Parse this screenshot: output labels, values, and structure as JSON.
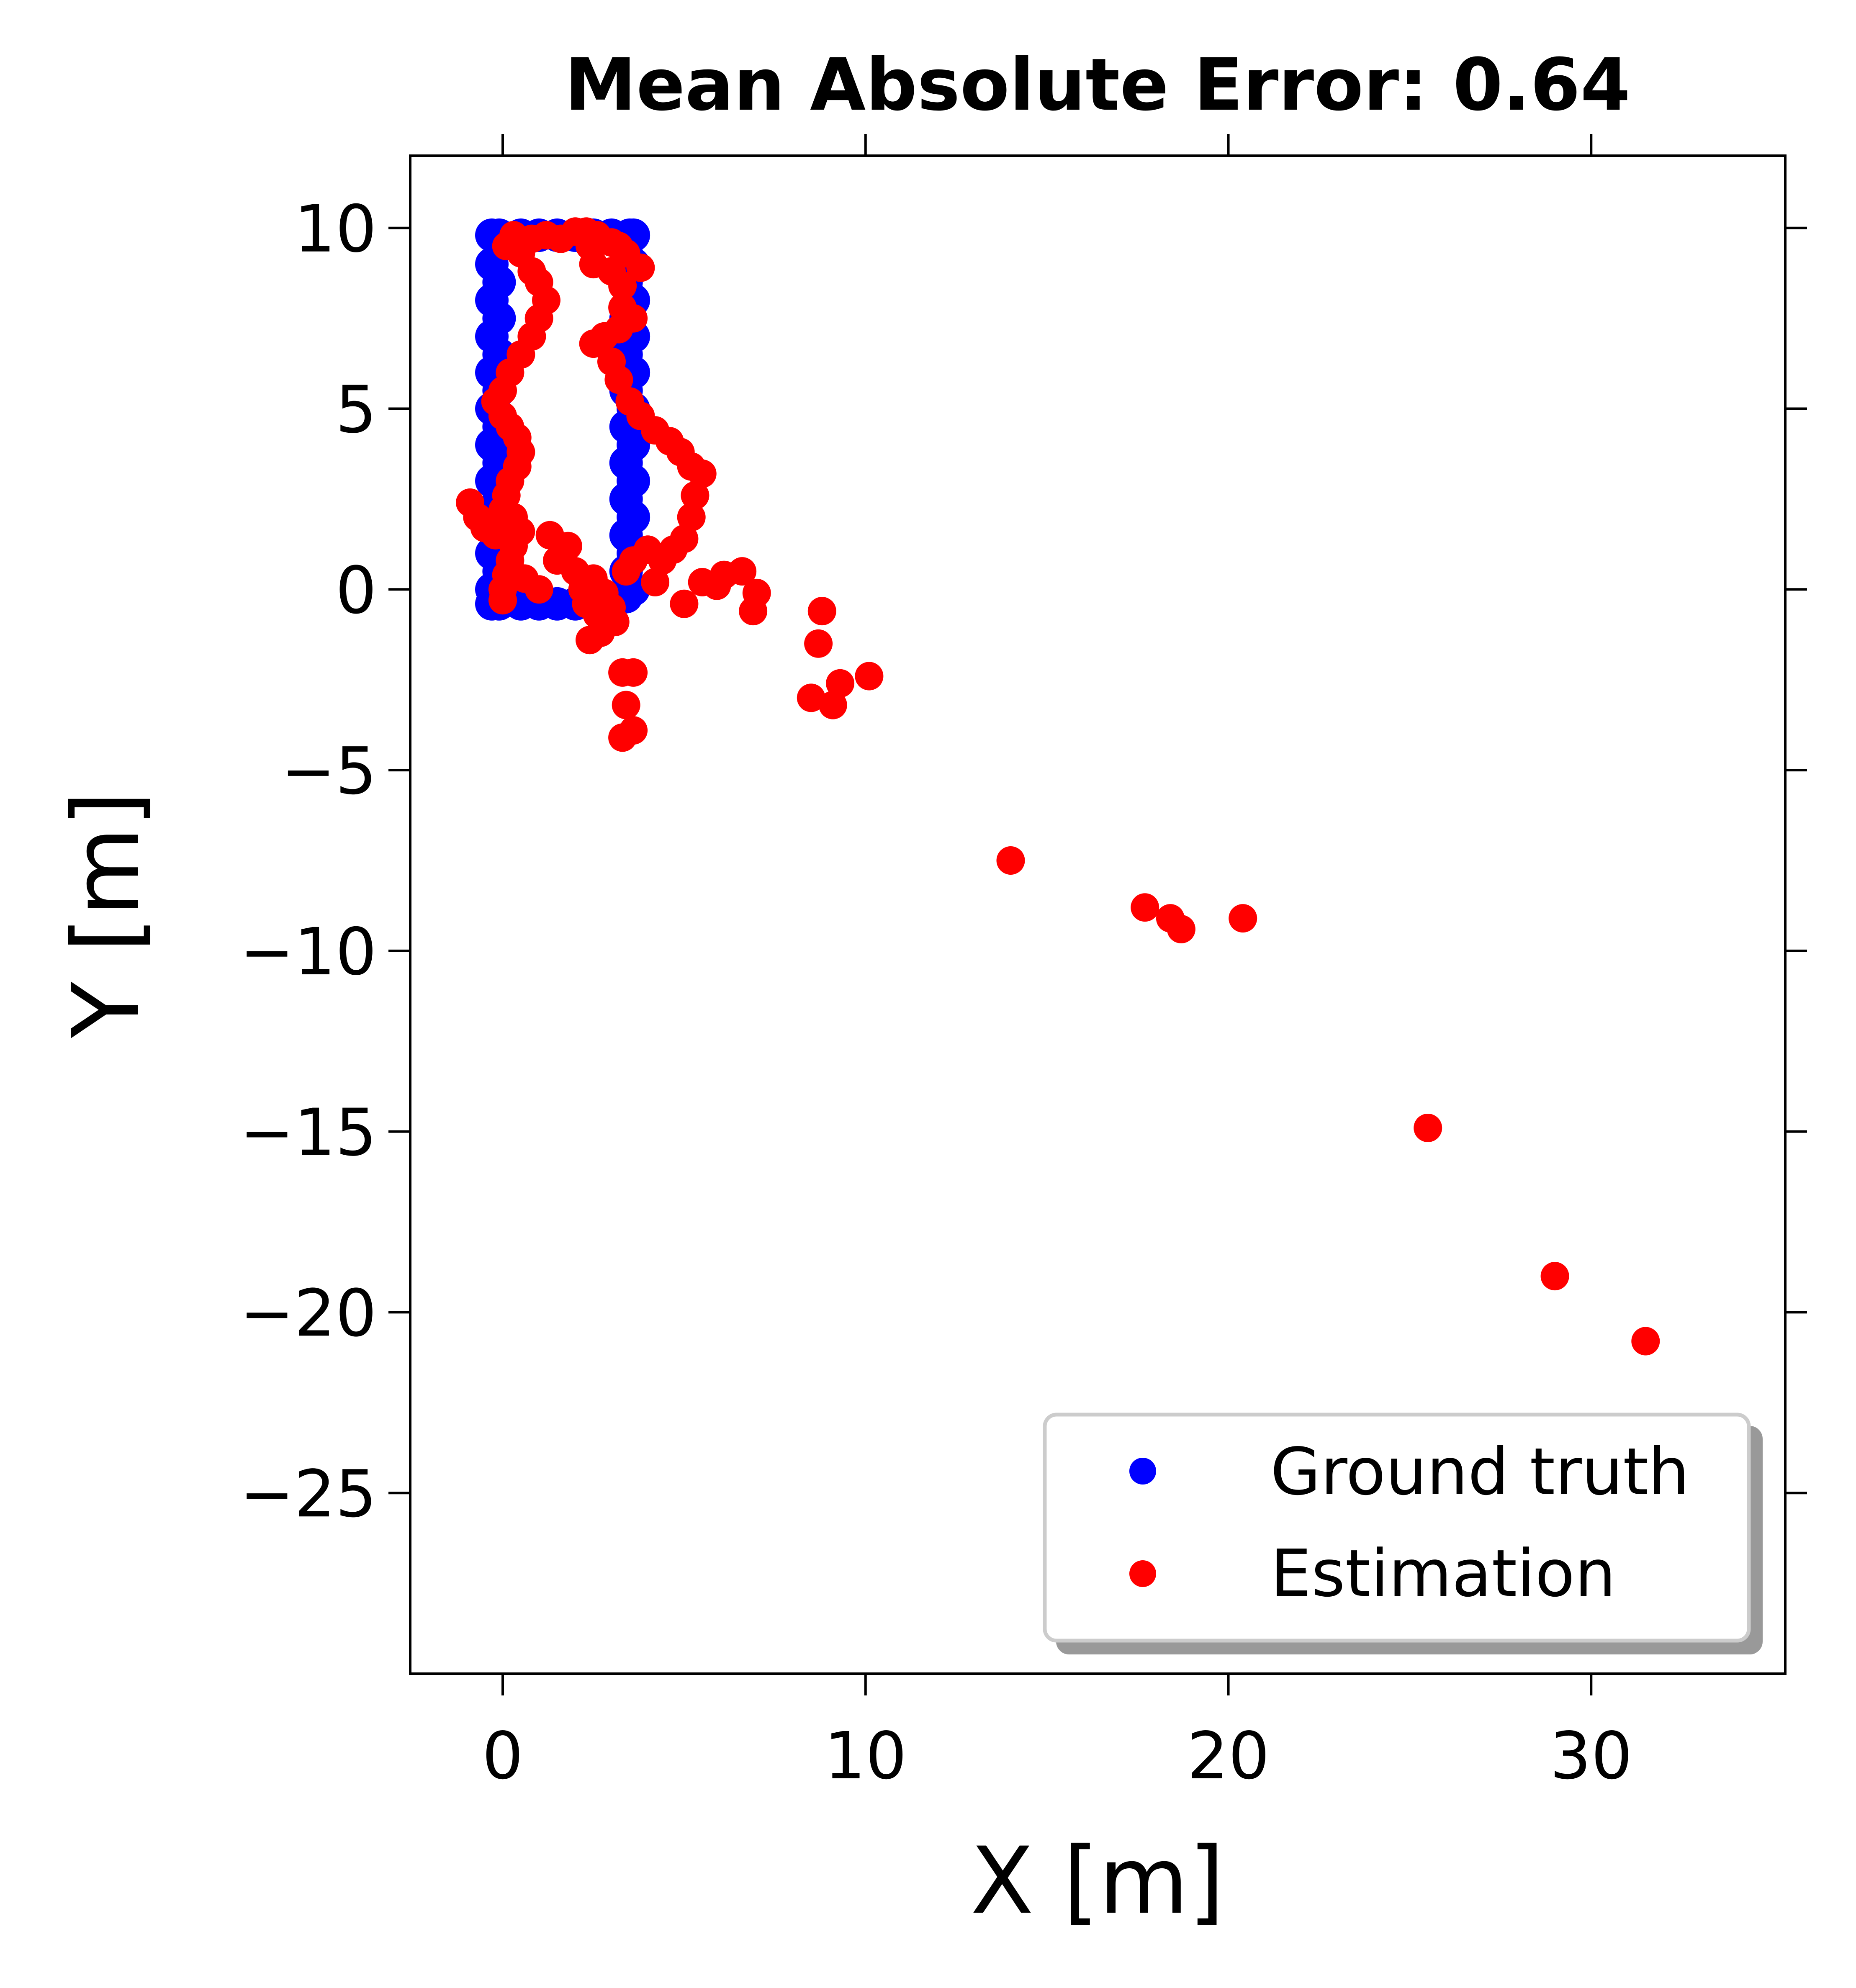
{
  "chart_data": {
    "type": "scatter",
    "title": "Mean Absolute Error: 0.64",
    "xlabel": "X [m]",
    "ylabel": "Y [m]",
    "xlim": [
      -2.55,
      35.35
    ],
    "ylim": [
      -30.0,
      12.0
    ],
    "xticks": [
      0,
      10,
      20,
      30
    ],
    "yticks": [
      10,
      5,
      0,
      -5,
      -10,
      -15,
      -20,
      -25
    ],
    "ytick_labels": [
      "10",
      "5",
      "0",
      "−5",
      "−10",
      "−15",
      "−20",
      "−25"
    ],
    "grid": false,
    "legend_position": "lower right",
    "series": [
      {
        "name": "Ground truth",
        "color": "#0000ff",
        "points": [
          [
            -0.3,
            9.8
          ],
          [
            -0.3,
            9.0
          ],
          [
            -0.3,
            8.0
          ],
          [
            -0.3,
            7.0
          ],
          [
            -0.3,
            6.0
          ],
          [
            -0.3,
            5.0
          ],
          [
            -0.3,
            4.0
          ],
          [
            -0.3,
            3.0
          ],
          [
            -0.3,
            2.0
          ],
          [
            -0.3,
            1.0
          ],
          [
            -0.3,
            0.0
          ],
          [
            -0.3,
            -0.4
          ],
          [
            -0.1,
            9.8
          ],
          [
            -0.1,
            8.5
          ],
          [
            -0.1,
            7.5
          ],
          [
            -0.1,
            6.5
          ],
          [
            -0.1,
            5.5
          ],
          [
            -0.1,
            4.5
          ],
          [
            -0.1,
            3.5
          ],
          [
            -0.1,
            2.5
          ],
          [
            -0.1,
            1.5
          ],
          [
            -0.1,
            0.5
          ],
          [
            -0.1,
            -0.4
          ],
          [
            0.5,
            9.8
          ],
          [
            1.0,
            9.8
          ],
          [
            1.5,
            9.8
          ],
          [
            2.0,
            9.8
          ],
          [
            2.5,
            9.8
          ],
          [
            3.0,
            9.8
          ],
          [
            3.5,
            9.8
          ],
          [
            0.5,
            -0.4
          ],
          [
            1.0,
            -0.4
          ],
          [
            1.5,
            -0.4
          ],
          [
            2.0,
            -0.4
          ],
          [
            2.5,
            -0.4
          ],
          [
            3.0,
            -0.4
          ],
          [
            3.4,
            9.5
          ],
          [
            3.4,
            8.5
          ],
          [
            3.4,
            7.5
          ],
          [
            3.4,
            6.5
          ],
          [
            3.4,
            5.5
          ],
          [
            3.4,
            4.5
          ],
          [
            3.4,
            3.5
          ],
          [
            3.4,
            2.5
          ],
          [
            3.4,
            1.5
          ],
          [
            3.4,
            0.5
          ],
          [
            3.4,
            -0.2
          ],
          [
            3.6,
            9.8
          ],
          [
            3.6,
            9.0
          ],
          [
            3.6,
            8.0
          ],
          [
            3.6,
            7.0
          ],
          [
            3.6,
            6.0
          ],
          [
            3.6,
            5.0
          ],
          [
            3.6,
            4.0
          ],
          [
            3.6,
            3.0
          ],
          [
            3.6,
            2.0
          ],
          [
            3.6,
            1.0
          ],
          [
            3.6,
            0.0
          ]
        ]
      },
      {
        "name": "Estimation",
        "color": "#ff0000",
        "points": [
          [
            0.1,
            9.5
          ],
          [
            0.3,
            9.8
          ],
          [
            0.8,
            9.7
          ],
          [
            1.2,
            9.8
          ],
          [
            1.6,
            9.7
          ],
          [
            2.0,
            9.9
          ],
          [
            2.3,
            9.9
          ],
          [
            2.6,
            9.8
          ],
          [
            3.0,
            9.6
          ],
          [
            3.4,
            9.3
          ],
          [
            3.8,
            8.9
          ],
          [
            0.5,
            9.3
          ],
          [
            0.8,
            8.8
          ],
          [
            1.0,
            8.5
          ],
          [
            1.2,
            8.0
          ],
          [
            1.0,
            7.5
          ],
          [
            0.8,
            7.0
          ],
          [
            0.5,
            6.5
          ],
          [
            0.2,
            6.0
          ],
          [
            0.0,
            5.5
          ],
          [
            -0.2,
            5.2
          ],
          [
            0.0,
            4.8
          ],
          [
            0.2,
            4.5
          ],
          [
            0.4,
            4.2
          ],
          [
            0.5,
            3.8
          ],
          [
            0.4,
            3.4
          ],
          [
            0.2,
            3.0
          ],
          [
            0.1,
            2.6
          ],
          [
            0.0,
            2.2
          ],
          [
            0.3,
            2.0
          ],
          [
            0.5,
            1.6
          ],
          [
            0.3,
            1.2
          ],
          [
            0.2,
            0.8
          ],
          [
            0.1,
            0.4
          ],
          [
            0.0,
            0.0
          ],
          [
            0.0,
            -0.3
          ],
          [
            -0.9,
            2.4
          ],
          [
            -0.7,
            2.0
          ],
          [
            -0.5,
            1.7
          ],
          [
            -0.2,
            1.5
          ],
          [
            0.6,
            0.3
          ],
          [
            1.0,
            0.0
          ],
          [
            1.3,
            1.5
          ],
          [
            1.5,
            0.8
          ],
          [
            1.8,
            1.2
          ],
          [
            2.0,
            0.5
          ],
          [
            2.2,
            0.0
          ],
          [
            2.5,
            0.3
          ],
          [
            2.8,
            -0.1
          ],
          [
            2.3,
            -0.4
          ],
          [
            2.6,
            -0.7
          ],
          [
            3.0,
            -0.5
          ],
          [
            2.4,
            9.5
          ],
          [
            2.5,
            9.0
          ],
          [
            3.0,
            8.8
          ],
          [
            3.2,
            9.5
          ],
          [
            3.3,
            8.4
          ],
          [
            3.3,
            7.8
          ],
          [
            3.2,
            7.2
          ],
          [
            3.6,
            7.5
          ],
          [
            2.8,
            7.0
          ],
          [
            2.5,
            6.8
          ],
          [
            3.0,
            6.3
          ],
          [
            3.2,
            5.8
          ],
          [
            3.5,
            5.2
          ],
          [
            3.8,
            4.8
          ],
          [
            4.2,
            4.4
          ],
          [
            4.6,
            4.1
          ],
          [
            4.9,
            3.8
          ],
          [
            5.2,
            3.4
          ],
          [
            5.5,
            3.2
          ],
          [
            5.3,
            2.6
          ],
          [
            5.2,
            2.0
          ],
          [
            5.0,
            1.4
          ],
          [
            4.7,
            1.1
          ],
          [
            4.4,
            0.8
          ],
          [
            4.0,
            1.1
          ],
          [
            3.6,
            0.8
          ],
          [
            3.4,
            0.5
          ],
          [
            4.2,
            0.2
          ],
          [
            5.0,
            -0.4
          ],
          [
            5.5,
            0.2
          ],
          [
            5.9,
            0.1
          ],
          [
            6.1,
            0.4
          ],
          [
            6.6,
            0.5
          ],
          [
            7.0,
            -0.1
          ],
          [
            6.9,
            -0.6
          ],
          [
            3.1,
            -0.9
          ],
          [
            2.7,
            -1.2
          ],
          [
            2.4,
            -1.4
          ],
          [
            3.3,
            -2.3
          ],
          [
            3.6,
            -2.3
          ],
          [
            3.4,
            -3.2
          ],
          [
            3.3,
            -4.1
          ],
          [
            3.6,
            -3.9
          ],
          [
            8.8,
            -0.6
          ],
          [
            8.7,
            -1.5
          ],
          [
            8.5,
            -3.0
          ],
          [
            9.1,
            -3.2
          ],
          [
            9.3,
            -2.6
          ],
          [
            10.1,
            -2.4
          ],
          [
            14.0,
            -7.5
          ],
          [
            17.7,
            -8.8
          ],
          [
            18.4,
            -9.1
          ],
          [
            18.7,
            -9.4
          ],
          [
            20.4,
            -9.1
          ],
          [
            25.5,
            -14.9
          ],
          [
            29.0,
            -19.0
          ],
          [
            31.5,
            -20.8
          ]
        ]
      }
    ]
  }
}
